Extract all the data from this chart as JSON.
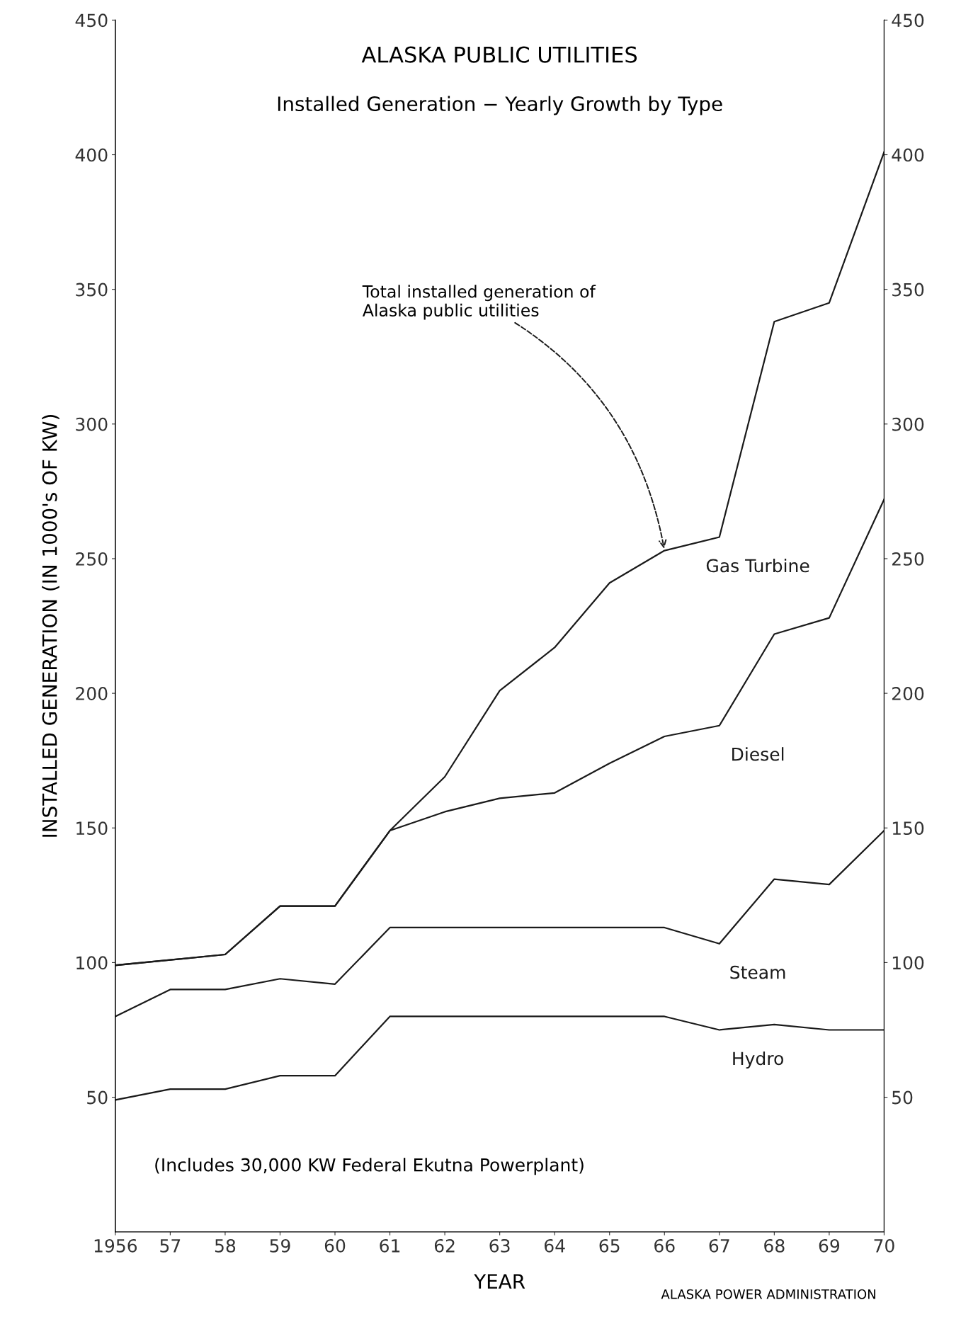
{
  "chart_data": {
    "type": "line",
    "title": "ALASKA PUBLIC UTILITIES",
    "subtitle": "Installed Generation − Yearly Growth by Type",
    "xlabel": "YEAR",
    "ylabel": "INSTALLED GENERATION (IN 1000's OF KW)",
    "x": [
      1956,
      1957,
      1958,
      1959,
      1960,
      1961,
      1962,
      1963,
      1964,
      1965,
      1966,
      1967,
      1968,
      1969,
      1970
    ],
    "series": [
      {
        "name": "Hydro",
        "color": "#1a1a1a",
        "values": [
          49,
          53,
          53,
          58,
          58,
          80,
          80,
          80,
          80,
          80,
          80,
          75,
          77,
          75,
          75
        ]
      },
      {
        "name": "Steam",
        "color": "#1a1a1a",
        "values": [
          80,
          90,
          90,
          94,
          92,
          113,
          113,
          113,
          113,
          113,
          113,
          107,
          131,
          129,
          149
        ]
      },
      {
        "name": "Diesel",
        "color": "#1a1a1a",
        "values": [
          99,
          101,
          103,
          121,
          121,
          149,
          156,
          161,
          163,
          174,
          184,
          188,
          222,
          228,
          272
        ]
      },
      {
        "name": "Gas Turbine",
        "color": "#1a1a1a",
        "values": [
          99,
          101,
          103,
          121,
          121,
          149,
          169,
          201,
          217,
          241,
          253,
          258,
          338,
          345,
          401
        ]
      }
    ],
    "xlim": [
      1956,
      1970
    ],
    "xticks": [
      1956,
      {
        "value": 1957,
        "label": "57"
      },
      {
        "value": 1958,
        "label": "58"
      },
      {
        "value": 1959,
        "label": "59"
      },
      {
        "value": 1960,
        "label": "60"
      },
      {
        "value": 1961,
        "label": "61"
      },
      {
        "value": 1962,
        "label": "62"
      },
      {
        "value": 1963,
        "label": "63"
      },
      {
        "value": 1964,
        "label": "64"
      },
      {
        "value": 1965,
        "label": "65"
      },
      {
        "value": 1966,
        "label": "66"
      },
      {
        "value": 1967,
        "label": "67"
      },
      {
        "value": 1968,
        "label": "68"
      },
      {
        "value": 1969,
        "label": "69"
      },
      {
        "value": 1970,
        "label": "70"
      }
    ],
    "ylim": [
      0,
      450
    ],
    "yticks": [
      50,
      100,
      150,
      200,
      250,
      300,
      350,
      400,
      450
    ],
    "y2lim": [
      0,
      450
    ],
    "y2ticks": [
      50,
      100,
      150,
      200,
      250,
      300,
      350,
      400,
      450
    ],
    "grid": false,
    "legend": false,
    "marker": "none",
    "line_style": "solid",
    "annotations": [
      {
        "text": "Total installed generation of\nAlaska public utilities",
        "x": 1966,
        "y": 253
      },
      "(Includes 30,000 KW Federal Ekutna Powerplant)",
      "ALASKA POWER ADMINISTRATION"
    ]
  }
}
